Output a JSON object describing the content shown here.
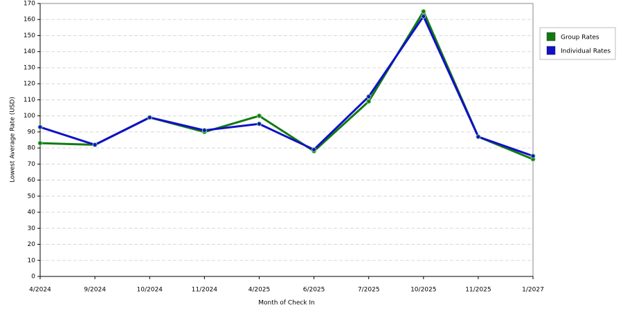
{
  "chart_data": {
    "type": "line",
    "x_label": "Month of Check In",
    "y_label": "Lowest Average Rate (USD)",
    "categories": [
      "4/2024",
      "9/2024",
      "10/2024",
      "11/2024",
      "4/2025",
      "6/2025",
      "7/2025",
      "10/2025",
      "11/2025",
      "1/2027"
    ],
    "series": [
      {
        "name": "Group Rates",
        "color": "#107a10",
        "values": [
          83,
          82,
          99,
          90,
          100,
          78,
          109,
          165,
          87,
          73
        ]
      },
      {
        "name": "Individual Rates",
        "color": "#1010c8",
        "values": [
          93,
          82,
          99,
          91,
          95,
          79,
          112,
          162,
          87,
          75
        ]
      }
    ],
    "ylim": [
      0,
      170
    ],
    "yticks": [
      0,
      10,
      20,
      30,
      40,
      50,
      60,
      70,
      80,
      90,
      100,
      110,
      120,
      130,
      140,
      150,
      160,
      170
    ],
    "grid": true
  }
}
